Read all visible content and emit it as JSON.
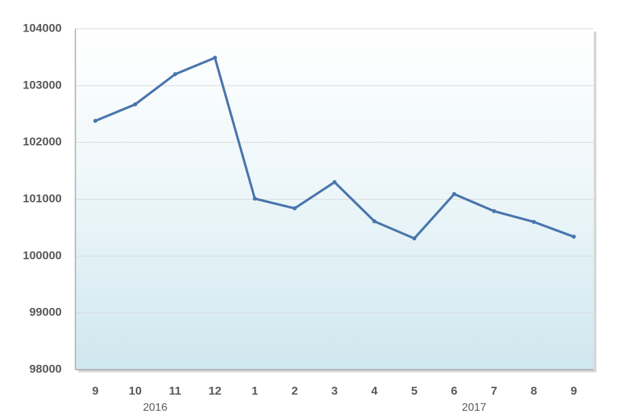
{
  "chart_data": {
    "type": "line",
    "categories": [
      "9",
      "10",
      "11",
      "12",
      "1",
      "2",
      "3",
      "4",
      "5",
      "6",
      "7",
      "8",
      "9"
    ],
    "year_labels": [
      "2016",
      "2017"
    ],
    "series": [
      {
        "color": "#4a76ad",
        "values": [
          102380,
          102670,
          103200,
          103490,
          101010,
          100840,
          101300,
          100610,
          100310,
          101090,
          100790,
          100600,
          100340
        ]
      }
    ],
    "ylim": [
      98000,
      104000
    ],
    "yticks": [
      98000,
      99000,
      100000,
      101000,
      102000,
      103000,
      104000
    ],
    "grid": true
  }
}
